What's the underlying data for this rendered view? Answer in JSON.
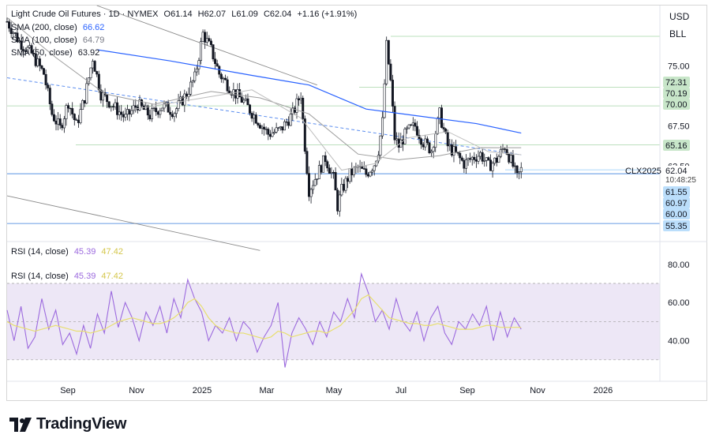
{
  "header": {
    "symbol": "Light Crude Oil Futures · 1D · NYMEX",
    "open_label": "O",
    "open": "61.14",
    "high_label": "H",
    "high": "62.07",
    "low_label": "L",
    "low": "61.09",
    "close_label": "C",
    "close": "62.04",
    "change": "+1.16 (+1.91%)"
  },
  "indicators": [
    {
      "label": "SMA (200, close)",
      "value": "66.62",
      "color": "#2962ff"
    },
    {
      "label": "SMA (100, close)",
      "value": "64.79",
      "color": "#9e9e9e"
    },
    {
      "label": "SMA (50, close)",
      "value": "63.92",
      "color": "#b0b0b0"
    }
  ],
  "currency": "USD",
  "unit": "BLL",
  "ticker": "CLX2025",
  "last_price": "62.04",
  "countdown": "10:48:25",
  "rsi_legend": [
    {
      "label": "RSI (14, close)",
      "value1": "45.39",
      "value2": "47.42"
    },
    {
      "label": "RSI (14, close)",
      "value1": "45.39",
      "value2": "47.42"
    }
  ],
  "brand": "TradingView",
  "colors": {
    "up": "#131722",
    "down": "#131722",
    "sma200": "#2962ff",
    "sma100": "#9e9e9e",
    "sma50": "#bdbdbd",
    "rsi": "#9c6ade",
    "rsi_ma": "#e8df70",
    "rsi_band": "#ede7f6",
    "support_line": "#7aa8e8",
    "green_line": "#a5d6a7",
    "channel": "#8a8a8a",
    "price_tag": "#ffffff",
    "blue_tag": "#bbdefb",
    "green_tag": "#c8e6c9"
  },
  "chart_data": [
    {
      "type": "candlestick",
      "title": "Light Crude Oil Futures · 1D · NYMEX",
      "x_ticks": [
        "Sep",
        "Nov",
        "2025",
        "Mar",
        "May",
        "Jul",
        "Sep",
        "Nov",
        "2026"
      ],
      "y_ticks": [
        75.0,
        67.5,
        62.5
      ],
      "ylim": [
        53.5,
        82.5
      ],
      "horizontal_levels": [
        {
          "value": 72.31,
          "label": "72.31",
          "style": "green"
        },
        {
          "value": 70.19,
          "label": "70.19",
          "style": "green"
        },
        {
          "value": 70.0,
          "label": "70.00",
          "style": "green"
        },
        {
          "value": 65.16,
          "label": "65.16",
          "style": "green"
        },
        {
          "value": 61.55,
          "label": "61.55",
          "style": "blue"
        },
        {
          "value": 60.97,
          "label": "60.97",
          "style": "blue"
        },
        {
          "value": 60.0,
          "label": "60.00",
          "style": "blue"
        },
        {
          "value": 55.35,
          "label": "55.35",
          "style": "blue"
        }
      ],
      "close_path": [
        {
          "t": 0,
          "v": 80.5
        },
        {
          "t": 3,
          "v": 78.0
        },
        {
          "t": 6,
          "v": 76.5
        },
        {
          "t": 9,
          "v": 74.0
        },
        {
          "t": 11,
          "v": 69.0
        },
        {
          "t": 13,
          "v": 67.2
        },
        {
          "t": 15,
          "v": 70.5
        },
        {
          "t": 17,
          "v": 67.6
        },
        {
          "t": 19,
          "v": 71.0
        },
        {
          "t": 21,
          "v": 76.0
        },
        {
          "t": 23,
          "v": 71.5
        },
        {
          "t": 26,
          "v": 70.0
        },
        {
          "t": 29,
          "v": 68.5
        },
        {
          "t": 32,
          "v": 70.2
        },
        {
          "t": 35,
          "v": 68.8
        },
        {
          "t": 38,
          "v": 70.0
        },
        {
          "t": 41,
          "v": 69.3
        },
        {
          "t": 44,
          "v": 71.5
        },
        {
          "t": 46,
          "v": 73.5
        },
        {
          "t": 48,
          "v": 79.0
        },
        {
          "t": 50,
          "v": 77.0
        },
        {
          "t": 52,
          "v": 74.0
        },
        {
          "t": 55,
          "v": 72.0
        },
        {
          "t": 58,
          "v": 70.5
        },
        {
          "t": 61,
          "v": 68.5
        },
        {
          "t": 64,
          "v": 66.5
        },
        {
          "t": 67,
          "v": 67.0
        },
        {
          "t": 70,
          "v": 69.0
        },
        {
          "t": 72,
          "v": 71.5
        },
        {
          "t": 73,
          "v": 65.0
        },
        {
          "t": 74,
          "v": 59.5
        },
        {
          "t": 76,
          "v": 61.5
        },
        {
          "t": 78,
          "v": 63.5
        },
        {
          "t": 80,
          "v": 61.0
        },
        {
          "t": 81,
          "v": 57.5
        },
        {
          "t": 82,
          "v": 59.5
        },
        {
          "t": 84,
          "v": 61.5
        },
        {
          "t": 86,
          "v": 62.3
        },
        {
          "t": 88,
          "v": 61.5
        },
        {
          "t": 90,
          "v": 62.8
        },
        {
          "t": 91,
          "v": 64.5
        },
        {
          "t": 92,
          "v": 68.0
        },
        {
          "t": 93,
          "v": 77.5
        },
        {
          "t": 94,
          "v": 73.0
        },
        {
          "t": 95,
          "v": 66.0
        },
        {
          "t": 96,
          "v": 65.0
        },
        {
          "t": 98,
          "v": 66.8
        },
        {
          "t": 100,
          "v": 67.5
        },
        {
          "t": 102,
          "v": 65.5
        },
        {
          "t": 104,
          "v": 64.5
        },
        {
          "t": 106,
          "v": 69.0
        },
        {
          "t": 108,
          "v": 65.0
        },
        {
          "t": 110,
          "v": 64.0
        },
        {
          "t": 112,
          "v": 62.8
        },
        {
          "t": 114,
          "v": 63.5
        },
        {
          "t": 116,
          "v": 64.0
        },
        {
          "t": 118,
          "v": 62.5
        },
        {
          "t": 120,
          "v": 63.3
        },
        {
          "t": 122,
          "v": 65.0
        },
        {
          "t": 124,
          "v": 62.5
        },
        {
          "t": 125,
          "v": 61.0
        },
        {
          "t": 126,
          "v": 62.04
        }
      ],
      "sma200_path": [
        {
          "t": 22,
          "v": 77.0
        },
        {
          "t": 40,
          "v": 75.6
        },
        {
          "t": 60,
          "v": 73.8
        },
        {
          "t": 74,
          "v": 72.6
        },
        {
          "t": 88,
          "v": 69.6
        },
        {
          "t": 100,
          "v": 68.8
        },
        {
          "t": 115,
          "v": 67.8
        },
        {
          "t": 126,
          "v": 66.62
        }
      ],
      "sma100_path": [
        {
          "t": 0,
          "v": 81.0
        },
        {
          "t": 12,
          "v": 76.0
        },
        {
          "t": 24,
          "v": 71.5
        },
        {
          "t": 36,
          "v": 70.2
        },
        {
          "t": 50,
          "v": 71.8
        },
        {
          "t": 62,
          "v": 71.0
        },
        {
          "t": 74,
          "v": 69.0
        },
        {
          "t": 86,
          "v": 64.0
        },
        {
          "t": 96,
          "v": 63.3
        },
        {
          "t": 106,
          "v": 63.8
        },
        {
          "t": 116,
          "v": 64.8
        },
        {
          "t": 126,
          "v": 64.79
        }
      ],
      "sma50_path": [
        {
          "t": 30,
          "v": 69.5
        },
        {
          "t": 48,
          "v": 71.0
        },
        {
          "t": 60,
          "v": 72.0
        },
        {
          "t": 72,
          "v": 68.5
        },
        {
          "t": 82,
          "v": 62.0
        },
        {
          "t": 90,
          "v": 62.8
        },
        {
          "t": 98,
          "v": 66.0
        },
        {
          "t": 108,
          "v": 66.8
        },
        {
          "t": 118,
          "v": 64.3
        },
        {
          "t": 126,
          "v": 63.92
        }
      ],
      "channel_lines": [
        {
          "t1": 22,
          "v1": 82.5,
          "t2": 76,
          "v2": 72.6
        },
        {
          "t1": 0,
          "v1": 58.8,
          "t2": 62,
          "v2": 52.0
        },
        {
          "t1": 0,
          "v1": 73.5,
          "t2": 126,
          "v2": 63.9
        }
      ],
      "t_axis": {
        "min": 0,
        "max": 160
      }
    },
    {
      "type": "line",
      "title": "RSI (14, close)",
      "y_ticks": [
        80.0,
        60.0,
        40.0
      ],
      "ylim": [
        20,
        82
      ],
      "band": [
        30,
        70
      ],
      "midline": 50,
      "series": [
        {
          "name": "RSI (14, close)",
          "values": [
            56,
            40,
            58,
            36,
            42,
            62,
            46,
            56,
            38,
            44,
            33,
            48,
            36,
            54,
            44,
            66,
            47,
            60,
            52,
            40,
            55,
            48,
            58,
            44,
            62,
            52,
            72,
            62,
            55,
            40,
            48,
            44,
            52,
            40,
            50,
            46,
            34,
            42,
            48,
            60,
            26,
            44,
            52,
            46,
            38,
            50,
            42,
            55,
            50,
            62,
            52,
            75,
            65,
            50,
            56,
            46,
            62,
            50,
            45,
            55,
            40,
            52,
            58,
            44,
            38,
            50,
            46,
            54,
            48,
            58,
            40,
            55,
            42,
            52,
            46
          ]
        },
        {
          "name": "",
          "values": [
            50,
            48,
            47,
            46,
            45,
            46,
            47,
            48,
            47,
            46,
            45,
            45,
            44,
            45,
            46,
            48,
            50,
            51,
            52,
            51,
            50,
            49,
            49,
            50,
            52,
            55,
            60,
            62,
            58,
            52,
            48,
            46,
            45,
            44,
            44,
            43,
            42,
            41,
            42,
            45,
            44,
            42,
            43,
            44,
            45,
            45,
            44,
            46,
            48,
            52,
            56,
            62,
            64,
            60,
            56,
            52,
            51,
            50,
            49,
            49,
            48,
            48,
            49,
            48,
            47,
            46,
            46,
            46,
            47,
            48,
            48,
            47,
            47,
            47,
            47
          ]
        }
      ]
    }
  ]
}
